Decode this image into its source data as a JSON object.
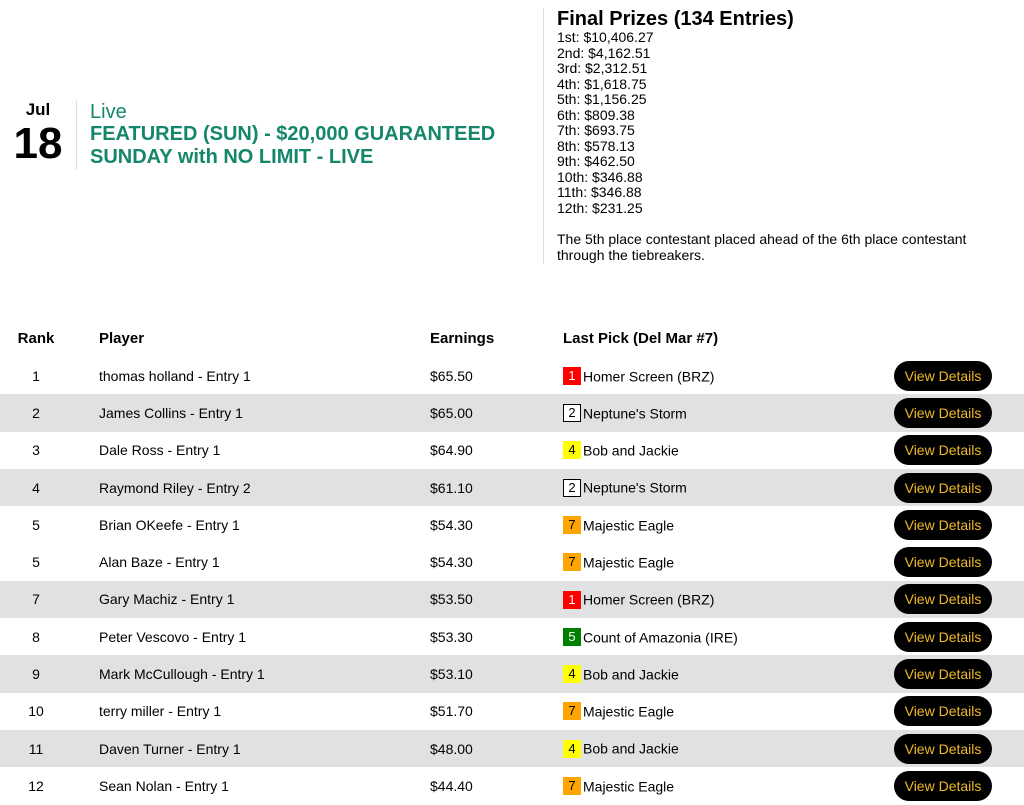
{
  "event": {
    "month": "Jul",
    "day": "18",
    "status": "Live",
    "title": "FEATURED (SUN) - $20,000 GUARANTEED SUNDAY with NO LIMIT - LIVE",
    "color": "#14876b"
  },
  "prizes": {
    "title": "Final Prizes (134 Entries)",
    "list": [
      "1st: $10,406.27",
      "2nd: $4,162.51",
      "3rd: $2,312.51",
      "4th: $1,618.75",
      "5th: $1,156.25",
      "6th: $809.38",
      "7th: $693.75",
      "8th: $578.13",
      "9th: $462.50",
      "10th: $346.88",
      "11th: $346.88",
      "12th: $231.25"
    ],
    "note": "The 5th place contestant placed ahead of the 6th place contestant through the tiebreakers."
  },
  "table": {
    "headers": {
      "rank": "Rank",
      "player": "Player",
      "earnings": "Earnings",
      "last_pick": "Last Pick (Del Mar #7)"
    },
    "button_label": "View Details",
    "rows": [
      {
        "rank": "1",
        "player": "thomas holland - Entry 1",
        "earnings": "$65.50",
        "pick_num": "1",
        "pick": "Homer Screen (BRZ)",
        "bg": "#ff0000",
        "fg": "#ffffff"
      },
      {
        "rank": "2",
        "player": "James Collins - Entry 1",
        "earnings": "$65.00",
        "pick_num": "2",
        "pick": "Neptune's Storm",
        "bg": "#ffffff",
        "fg": "#000000"
      },
      {
        "rank": "3",
        "player": "Dale Ross - Entry 1",
        "earnings": "$64.90",
        "pick_num": "4",
        "pick": "Bob and Jackie",
        "bg": "#ffff00",
        "fg": "#000000"
      },
      {
        "rank": "4",
        "player": "Raymond Riley - Entry 2",
        "earnings": "$61.10",
        "pick_num": "2",
        "pick": "Neptune's Storm",
        "bg": "#ffffff",
        "fg": "#000000"
      },
      {
        "rank": "5",
        "player": "Brian OKeefe - Entry 1",
        "earnings": "$54.30",
        "pick_num": "7",
        "pick": "Majestic Eagle",
        "bg": "#ffa500",
        "fg": "#000000"
      },
      {
        "rank": "5",
        "player": "Alan Baze - Entry 1",
        "earnings": "$54.30",
        "pick_num": "7",
        "pick": "Majestic Eagle",
        "bg": "#ffa500",
        "fg": "#000000"
      },
      {
        "rank": "7",
        "player": "Gary Machiz - Entry 1",
        "earnings": "$53.50",
        "pick_num": "1",
        "pick": "Homer Screen (BRZ)",
        "bg": "#ff0000",
        "fg": "#ffffff"
      },
      {
        "rank": "8",
        "player": "Peter Vescovo - Entry 1",
        "earnings": "$53.30",
        "pick_num": "5",
        "pick": "Count of Amazonia (IRE)",
        "bg": "#008000",
        "fg": "#ffffff"
      },
      {
        "rank": "9",
        "player": "Mark McCullough - Entry 1",
        "earnings": "$53.10",
        "pick_num": "4",
        "pick": "Bob and Jackie",
        "bg": "#ffff00",
        "fg": "#000000"
      },
      {
        "rank": "10",
        "player": "terry miller - Entry 1",
        "earnings": "$51.70",
        "pick_num": "7",
        "pick": "Majestic Eagle",
        "bg": "#ffa500",
        "fg": "#000000"
      },
      {
        "rank": "11",
        "player": "Daven Turner - Entry 1",
        "earnings": "$48.00",
        "pick_num": "4",
        "pick": "Bob and Jackie",
        "bg": "#ffff00",
        "fg": "#000000"
      },
      {
        "rank": "12",
        "player": "Sean Nolan - Entry 1",
        "earnings": "$44.40",
        "pick_num": "7",
        "pick": "Majestic Eagle",
        "bg": "#ffa500",
        "fg": "#000000"
      }
    ]
  }
}
